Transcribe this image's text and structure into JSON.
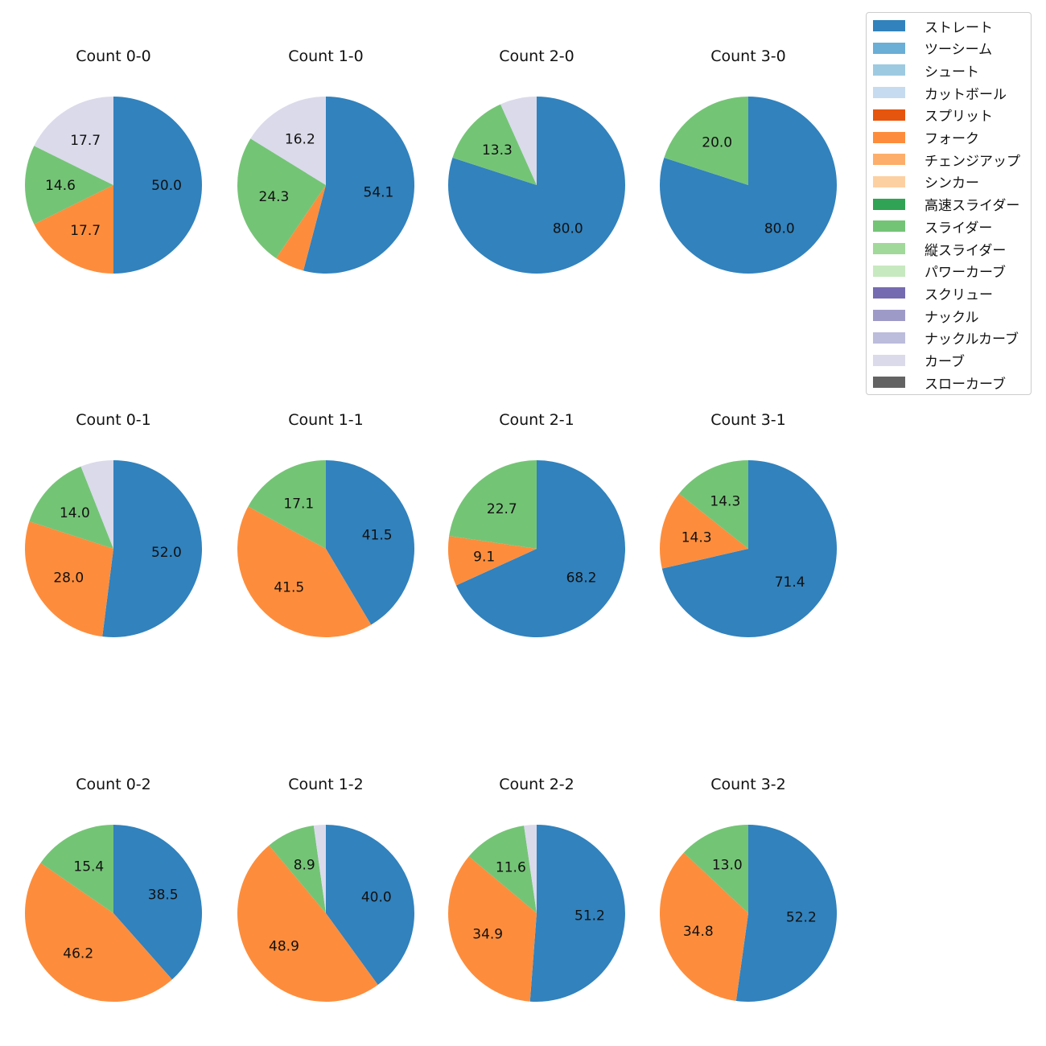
{
  "legend": {
    "items": [
      {
        "label": "ストレート",
        "color": "#3182bd"
      },
      {
        "label": "ツーシーム",
        "color": "#6baed6"
      },
      {
        "label": "シュート",
        "color": "#9ecae1"
      },
      {
        "label": "カットボール",
        "color": "#c6dbef"
      },
      {
        "label": "スプリット",
        "color": "#e6550d"
      },
      {
        "label": "フォーク",
        "color": "#fd8d3c"
      },
      {
        "label": "チェンジアップ",
        "color": "#fdae6b"
      },
      {
        "label": "シンカー",
        "color": "#fdd0a2"
      },
      {
        "label": "高速スライダー",
        "color": "#31a354"
      },
      {
        "label": "スライダー",
        "color": "#74c476"
      },
      {
        "label": "縦スライダー",
        "color": "#a1d99b"
      },
      {
        "label": "パワーカーブ",
        "color": "#c7e9c0"
      },
      {
        "label": "スクリュー",
        "color": "#756bb1"
      },
      {
        "label": "ナックル",
        "color": "#9e9ac8"
      },
      {
        "label": "ナックルカーブ",
        "color": "#bcbddc"
      },
      {
        "label": "カーブ",
        "color": "#dadaeb"
      },
      {
        "label": "スローカーブ",
        "color": "#636363"
      }
    ]
  },
  "chart_data": [
    {
      "type": "pie",
      "title": "Count 0-0",
      "slices": [
        {
          "name": "ストレート",
          "value": 50.0,
          "label": "50.0"
        },
        {
          "name": "フォーク",
          "value": 17.7,
          "label": "17.7"
        },
        {
          "name": "スライダー",
          "value": 14.6,
          "label": "14.6"
        },
        {
          "name": "カーブ",
          "value": 17.7,
          "label": "17.7"
        }
      ]
    },
    {
      "type": "pie",
      "title": "Count 1-0",
      "slices": [
        {
          "name": "ストレート",
          "value": 54.1,
          "label": "54.1"
        },
        {
          "name": "フォーク",
          "value": 5.4,
          "label": ""
        },
        {
          "name": "スライダー",
          "value": 24.3,
          "label": "24.3"
        },
        {
          "name": "カーブ",
          "value": 16.2,
          "label": "16.2"
        }
      ]
    },
    {
      "type": "pie",
      "title": "Count 2-0",
      "slices": [
        {
          "name": "ストレート",
          "value": 80.0,
          "label": "80.0"
        },
        {
          "name": "スライダー",
          "value": 13.3,
          "label": "13.3"
        },
        {
          "name": "カーブ",
          "value": 6.7,
          "label": ""
        }
      ]
    },
    {
      "type": "pie",
      "title": "Count 3-0",
      "slices": [
        {
          "name": "ストレート",
          "value": 80.0,
          "label": "80.0"
        },
        {
          "name": "スライダー",
          "value": 20.0,
          "label": "20.0"
        }
      ]
    },
    {
      "type": "pie",
      "title": "Count 0-1",
      "slices": [
        {
          "name": "ストレート",
          "value": 52.0,
          "label": "52.0"
        },
        {
          "name": "フォーク",
          "value": 28.0,
          "label": "28.0"
        },
        {
          "name": "スライダー",
          "value": 14.0,
          "label": "14.0"
        },
        {
          "name": "カーブ",
          "value": 6.0,
          "label": ""
        }
      ]
    },
    {
      "type": "pie",
      "title": "Count 1-1",
      "slices": [
        {
          "name": "ストレート",
          "value": 41.5,
          "label": "41.5"
        },
        {
          "name": "フォーク",
          "value": 41.5,
          "label": "41.5"
        },
        {
          "name": "スライダー",
          "value": 17.1,
          "label": "17.1"
        }
      ]
    },
    {
      "type": "pie",
      "title": "Count 2-1",
      "slices": [
        {
          "name": "ストレート",
          "value": 68.2,
          "label": "68.2"
        },
        {
          "name": "フォーク",
          "value": 9.1,
          "label": "9.1"
        },
        {
          "name": "スライダー",
          "value": 22.7,
          "label": "22.7"
        }
      ]
    },
    {
      "type": "pie",
      "title": "Count 3-1",
      "slices": [
        {
          "name": "ストレート",
          "value": 71.4,
          "label": "71.4"
        },
        {
          "name": "フォーク",
          "value": 14.3,
          "label": "14.3"
        },
        {
          "name": "スライダー",
          "value": 14.3,
          "label": "14.3"
        }
      ]
    },
    {
      "type": "pie",
      "title": "Count 0-2",
      "slices": [
        {
          "name": "ストレート",
          "value": 38.5,
          "label": "38.5"
        },
        {
          "name": "フォーク",
          "value": 46.2,
          "label": "46.2"
        },
        {
          "name": "スライダー",
          "value": 15.4,
          "label": "15.4"
        }
      ]
    },
    {
      "type": "pie",
      "title": "Count 1-2",
      "slices": [
        {
          "name": "ストレート",
          "value": 40.0,
          "label": "40.0"
        },
        {
          "name": "フォーク",
          "value": 48.9,
          "label": "48.9"
        },
        {
          "name": "スライダー",
          "value": 8.9,
          "label": "8.9"
        },
        {
          "name": "カーブ",
          "value": 2.2,
          "label": ""
        }
      ]
    },
    {
      "type": "pie",
      "title": "Count 2-2",
      "slices": [
        {
          "name": "ストレート",
          "value": 51.2,
          "label": "51.2"
        },
        {
          "name": "フォーク",
          "value": 34.9,
          "label": "34.9"
        },
        {
          "name": "スライダー",
          "value": 11.6,
          "label": "11.6"
        },
        {
          "name": "カーブ",
          "value": 2.3,
          "label": ""
        }
      ]
    },
    {
      "type": "pie",
      "title": "Count 3-2",
      "slices": [
        {
          "name": "ストレート",
          "value": 52.2,
          "label": "52.2"
        },
        {
          "name": "フォーク",
          "value": 34.8,
          "label": "34.8"
        },
        {
          "name": "スライダー",
          "value": 13.0,
          "label": "13.0"
        }
      ]
    }
  ]
}
